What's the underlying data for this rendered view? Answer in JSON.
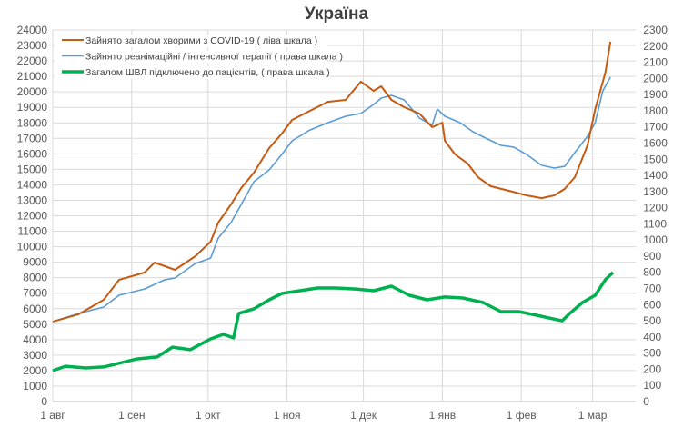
{
  "chart_data": {
    "type": "line",
    "title": "Україна",
    "x_tick_labels": [
      "1 авг",
      "1 сен",
      "1 окт",
      "1 ноя",
      "1 дек",
      "1 янв",
      "1 фев",
      "1 мар"
    ],
    "x_tick_dates": [
      "2020-08-01",
      "2020-09-01",
      "2020-10-01",
      "2020-11-01",
      "2020-12-01",
      "2021-01-01",
      "2021-02-01",
      "2021-03-01"
    ],
    "x_range": [
      "2020-08-01",
      "2021-03-18"
    ],
    "y_left": {
      "min": 0,
      "max": 24000,
      "step": 1000
    },
    "y_right": {
      "min": 0,
      "max": 2300,
      "step": 100
    },
    "grid": true,
    "legend_position": "top-left",
    "series": [
      {
        "name": "Зайнято загалом хворими з COVID-19 ( ліва шкала )",
        "axis": "left",
        "color": "#C55A11",
        "width": 2,
        "points": [
          [
            "2020-08-01",
            5160
          ],
          [
            "2020-08-11",
            5630
          ],
          [
            "2020-08-21",
            6570
          ],
          [
            "2020-08-27",
            7860
          ],
          [
            "2020-09-06",
            8330
          ],
          [
            "2020-09-10",
            8980
          ],
          [
            "2020-09-18",
            8510
          ],
          [
            "2020-09-26",
            9390
          ],
          [
            "2020-10-02",
            10330
          ],
          [
            "2020-10-05",
            11560
          ],
          [
            "2020-10-10",
            12730
          ],
          [
            "2020-10-14",
            13790
          ],
          [
            "2020-10-19",
            14790
          ],
          [
            "2020-10-25",
            16370
          ],
          [
            "2020-10-30",
            17310
          ],
          [
            "2020-11-03",
            18190
          ],
          [
            "2020-11-10",
            18780
          ],
          [
            "2020-11-17",
            19360
          ],
          [
            "2020-11-24",
            19480
          ],
          [
            "2020-11-30",
            20660
          ],
          [
            "2020-12-05",
            20070
          ],
          [
            "2020-12-08",
            20360
          ],
          [
            "2020-12-12",
            19480
          ],
          [
            "2020-12-17",
            19010
          ],
          [
            "2020-12-23",
            18600
          ],
          [
            "2020-12-28",
            17720
          ],
          [
            "2021-01-01",
            18010
          ],
          [
            "2021-01-02",
            16840
          ],
          [
            "2021-01-06",
            15960
          ],
          [
            "2021-01-11",
            15370
          ],
          [
            "2021-01-15",
            14490
          ],
          [
            "2021-01-20",
            13910
          ],
          [
            "2021-01-27",
            13620
          ],
          [
            "2021-02-03",
            13320
          ],
          [
            "2021-02-09",
            13140
          ],
          [
            "2021-02-14",
            13320
          ],
          [
            "2021-02-18",
            13730
          ],
          [
            "2021-02-22",
            14490
          ],
          [
            "2021-02-27",
            16550
          ],
          [
            "2021-03-02",
            18880
          ],
          [
            "2021-03-06",
            21240
          ],
          [
            "2021-03-08",
            23240
          ]
        ]
      },
      {
        "name": "Зайнято реанімаційні / інтенсивної терапії ( права шкала )",
        "axis": "right",
        "color": "#5B9BD5",
        "width": 1.6,
        "points": [
          [
            "2020-08-01",
            495
          ],
          [
            "2020-08-11",
            545
          ],
          [
            "2020-08-21",
            585
          ],
          [
            "2020-08-27",
            658
          ],
          [
            "2020-09-06",
            697
          ],
          [
            "2020-09-14",
            754
          ],
          [
            "2020-09-18",
            765
          ],
          [
            "2020-09-26",
            855
          ],
          [
            "2020-10-02",
            888
          ],
          [
            "2020-10-05",
            1012
          ],
          [
            "2020-10-10",
            1108
          ],
          [
            "2020-10-14",
            1220
          ],
          [
            "2020-10-19",
            1361
          ],
          [
            "2020-10-25",
            1434
          ],
          [
            "2020-10-30",
            1530
          ],
          [
            "2020-11-03",
            1614
          ],
          [
            "2020-11-10",
            1681
          ],
          [
            "2020-11-17",
            1726
          ],
          [
            "2020-11-24",
            1766
          ],
          [
            "2020-11-30",
            1783
          ],
          [
            "2020-12-05",
            1839
          ],
          [
            "2020-12-08",
            1878
          ],
          [
            "2020-12-12",
            1895
          ],
          [
            "2020-12-17",
            1867
          ],
          [
            "2020-12-23",
            1755
          ],
          [
            "2020-12-28",
            1710
          ],
          [
            "2020-12-30",
            1811
          ],
          [
            "2021-01-02",
            1766
          ],
          [
            "2021-01-08",
            1726
          ],
          [
            "2021-01-13",
            1670
          ],
          [
            "2021-01-18",
            1631
          ],
          [
            "2021-01-24",
            1586
          ],
          [
            "2021-01-29",
            1575
          ],
          [
            "2021-02-03",
            1530
          ],
          [
            "2021-02-09",
            1462
          ],
          [
            "2021-02-14",
            1445
          ],
          [
            "2021-02-18",
            1456
          ],
          [
            "2021-02-22",
            1541
          ],
          [
            "2021-02-27",
            1642
          ],
          [
            "2021-03-02",
            1726
          ],
          [
            "2021-03-05",
            1923
          ],
          [
            "2021-03-08",
            2008
          ]
        ]
      },
      {
        "name": "Загалом ШВЛ  підключено до пацієнтів, ( права шкала )",
        "axis": "right",
        "color": "#00B050",
        "width": 3.5,
        "points": [
          [
            "2020-08-01",
            191
          ],
          [
            "2020-08-06",
            219
          ],
          [
            "2020-08-14",
            208
          ],
          [
            "2020-08-21",
            214
          ],
          [
            "2020-09-03",
            264
          ],
          [
            "2020-09-11",
            276
          ],
          [
            "2020-09-17",
            337
          ],
          [
            "2020-09-24",
            321
          ],
          [
            "2020-10-02",
            388
          ],
          [
            "2020-10-07",
            416
          ],
          [
            "2020-10-11",
            394
          ],
          [
            "2020-10-13",
            545
          ],
          [
            "2020-10-19",
            574
          ],
          [
            "2020-10-25",
            630
          ],
          [
            "2020-10-30",
            669
          ],
          [
            "2020-11-06",
            686
          ],
          [
            "2020-11-13",
            703
          ],
          [
            "2020-11-20",
            703
          ],
          [
            "2020-11-28",
            697
          ],
          [
            "2020-12-05",
            686
          ],
          [
            "2020-12-12",
            714
          ],
          [
            "2020-12-19",
            658
          ],
          [
            "2020-12-26",
            630
          ],
          [
            "2021-01-02",
            647
          ],
          [
            "2021-01-09",
            641
          ],
          [
            "2021-01-17",
            613
          ],
          [
            "2021-01-24",
            557
          ],
          [
            "2021-01-31",
            557
          ],
          [
            "2021-02-07",
            534
          ],
          [
            "2021-02-12",
            517
          ],
          [
            "2021-02-17",
            500
          ],
          [
            "2021-02-20",
            545
          ],
          [
            "2021-02-25",
            613
          ],
          [
            "2021-03-02",
            658
          ],
          [
            "2021-03-06",
            754
          ],
          [
            "2021-03-09",
            799
          ]
        ]
      }
    ]
  }
}
